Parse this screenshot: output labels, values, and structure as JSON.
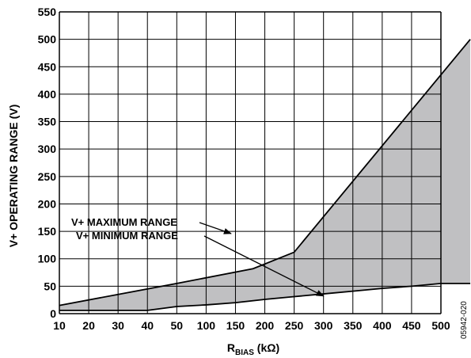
{
  "chart_data": {
    "type": "area",
    "ylabel": "V+ OPERATING RANGE (V)",
    "xlabel_main": "R",
    "xlabel_sub": "BIAS",
    "xlabel_unit": " (kΩ)",
    "figure_id": "05942-020",
    "x_ticks": [
      "10",
      "20",
      "30",
      "40",
      "50",
      "100",
      "150",
      "200",
      "250",
      "300",
      "350",
      "400",
      "450",
      "500"
    ],
    "y_ticks": [
      0,
      50,
      100,
      150,
      200,
      250,
      300,
      350,
      400,
      450,
      500,
      550
    ],
    "ylim": [
      0,
      550
    ],
    "grid": true,
    "series": [
      {
        "name": "V+ MAXIMUM RANGE",
        "x_index": [
          0,
          2,
          4,
          6.6,
          8,
          14
        ],
        "values": [
          15,
          35,
          55,
          82,
          112,
          500
        ]
      },
      {
        "name": "V+ MINIMUM RANGE",
        "x_index": [
          0,
          1,
          2,
          3,
          4,
          5,
          6,
          7,
          8,
          9,
          10,
          11,
          12,
          13,
          14
        ],
        "values": [
          6,
          6,
          6,
          6,
          13,
          16,
          20,
          26,
          31,
          36,
          41,
          46,
          50,
          55,
          55
        ]
      }
    ],
    "fill_color": "#c0c0c2",
    "annotations": [
      {
        "text": "V+ MAXIMUM RANGE",
        "arrow_to": [
          5.85,
          146
        ]
      },
      {
        "text": "V+ MINIMUM RANGE",
        "arrow_to": [
          9.0,
          32
        ]
      }
    ]
  }
}
